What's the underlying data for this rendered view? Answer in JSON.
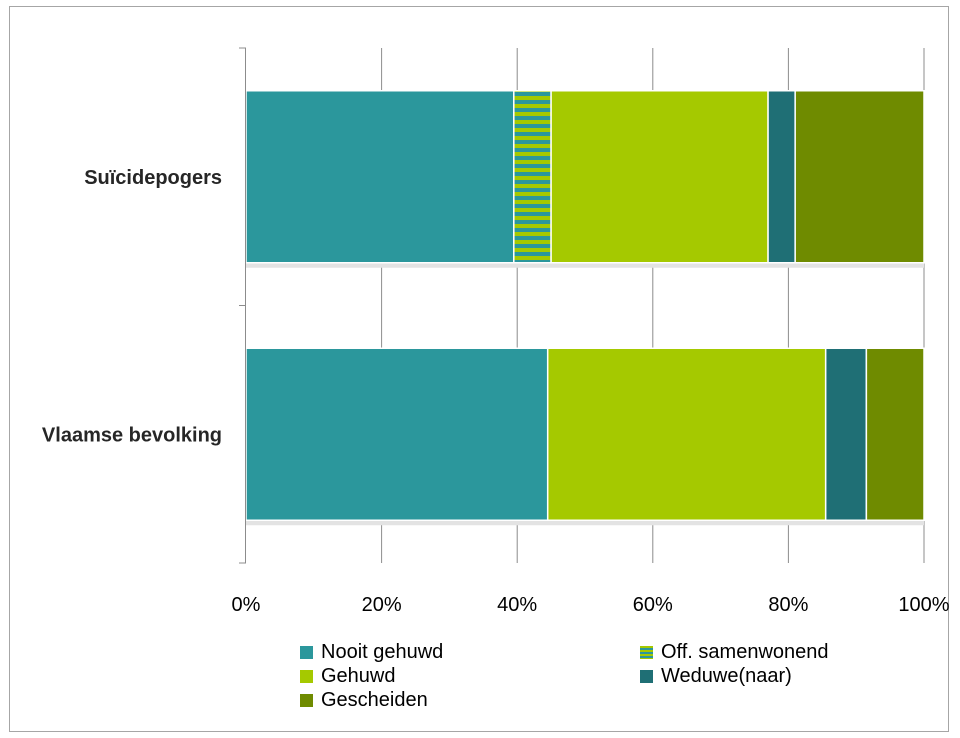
{
  "chart_data": {
    "type": "bar",
    "orientation": "horizontal",
    "stacked": "percent",
    "categories": [
      "Suïcidepogers",
      "Vlaamse bevolking"
    ],
    "series": [
      {
        "name": "Nooit gehuwd",
        "color": "#2b979c",
        "values": [
          39.5,
          44.5
        ]
      },
      {
        "name": "Off. samenwonend",
        "color": "#2b979c",
        "pattern": "stripes-green",
        "values": [
          5.5,
          0
        ]
      },
      {
        "name": "Gehuwd",
        "color": "#a5c900",
        "values": [
          32,
          41
        ]
      },
      {
        "name": "Weduwe(naar)",
        "color": "#1f6f75",
        "values": [
          4,
          6
        ]
      },
      {
        "name": "Gescheiden",
        "color": "#6f8b00",
        "values": [
          19,
          8.5
        ]
      }
    ],
    "xaxis": {
      "ticks": [
        "0%",
        "20%",
        "40%",
        "60%",
        "80%",
        "100%"
      ],
      "range": [
        0,
        100
      ]
    },
    "grid": true,
    "legend": "bottom",
    "title": "",
    "xlabel": "",
    "ylabel": ""
  }
}
